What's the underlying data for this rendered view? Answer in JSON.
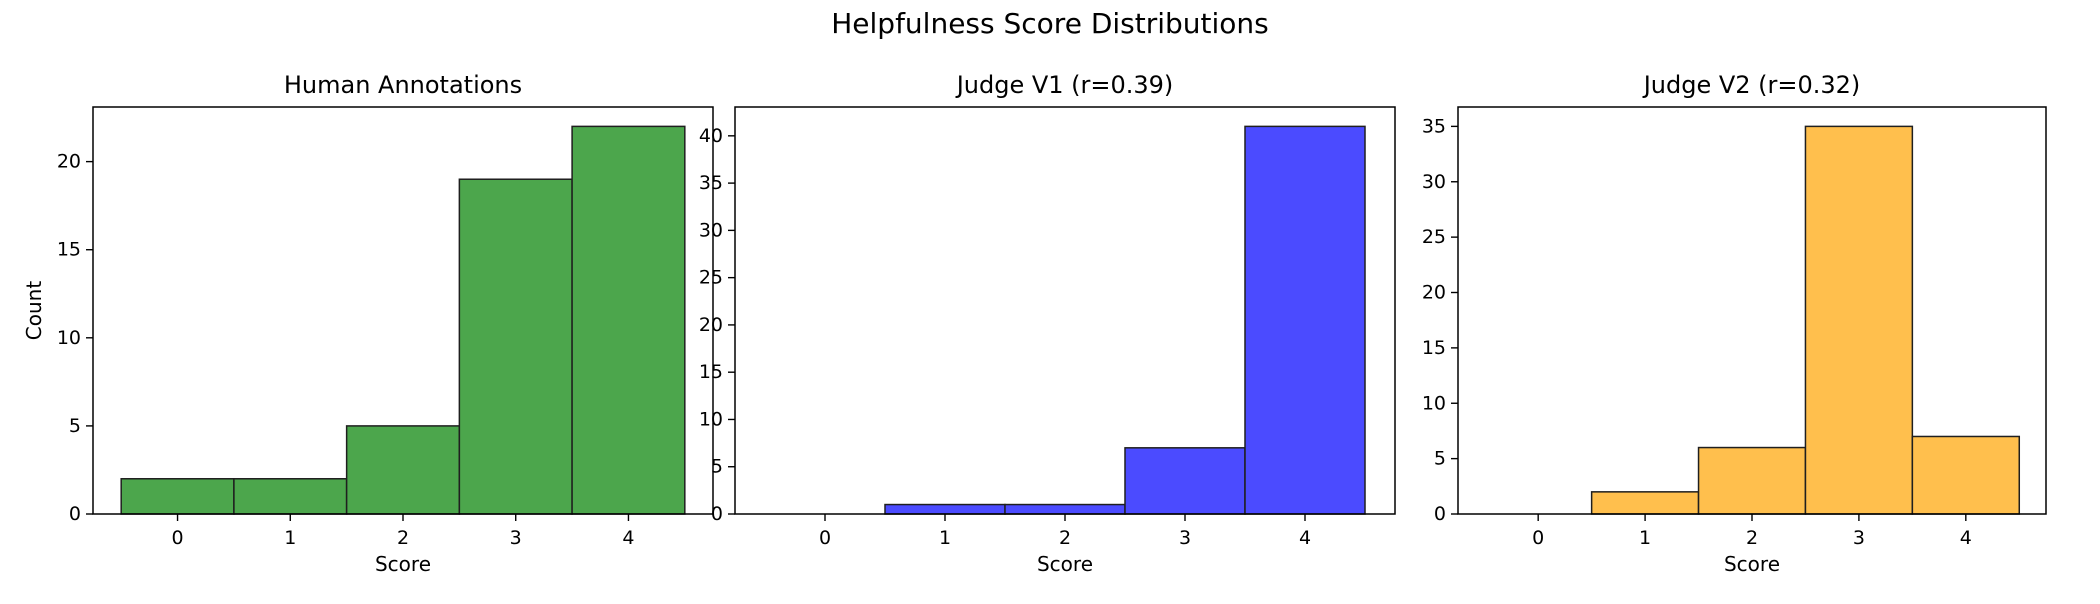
{
  "figure": {
    "title": "Helpfulness Score Distributions"
  },
  "chart_data": [
    {
      "type": "bar",
      "title": "Human Annotations",
      "xlabel": "Score",
      "ylabel": "Count",
      "categories": [
        "0",
        "1",
        "2",
        "3",
        "4"
      ],
      "values": [
        2,
        2,
        5,
        19,
        22
      ],
      "ylim": [
        0,
        23.1
      ],
      "xlim": [
        -0.75,
        4.75
      ],
      "yticks": [
        0,
        5,
        10,
        15,
        20
      ],
      "color": "#4ca64c",
      "edgecolor": "#1f1f1f",
      "grid": false
    },
    {
      "type": "bar",
      "title": "Judge V1 (r=0.39)",
      "xlabel": "Score",
      "ylabel": "",
      "categories": [
        "0",
        "1",
        "2",
        "3",
        "4"
      ],
      "values": [
        0,
        1,
        1,
        7,
        41
      ],
      "ylim": [
        0,
        43.05
      ],
      "xlim": [
        -0.75,
        4.75
      ],
      "yticks": [
        0,
        5,
        10,
        15,
        20,
        25,
        30,
        35,
        40
      ],
      "color": "#4b4bff",
      "edgecolor": "#1f1f1f",
      "grid": false
    },
    {
      "type": "bar",
      "title": "Judge V2 (r=0.32)",
      "xlabel": "Score",
      "ylabel": "",
      "categories": [
        "0",
        "1",
        "2",
        "3",
        "4"
      ],
      "values": [
        0,
        2,
        6,
        35,
        7
      ],
      "ylim": [
        0,
        36.75
      ],
      "xlim": [
        -0.75,
        4.75
      ],
      "yticks": [
        0,
        5,
        10,
        15,
        20,
        25,
        30,
        35
      ],
      "color": "#ffbf4d",
      "edgecolor": "#1f1f1f",
      "grid": false
    }
  ]
}
